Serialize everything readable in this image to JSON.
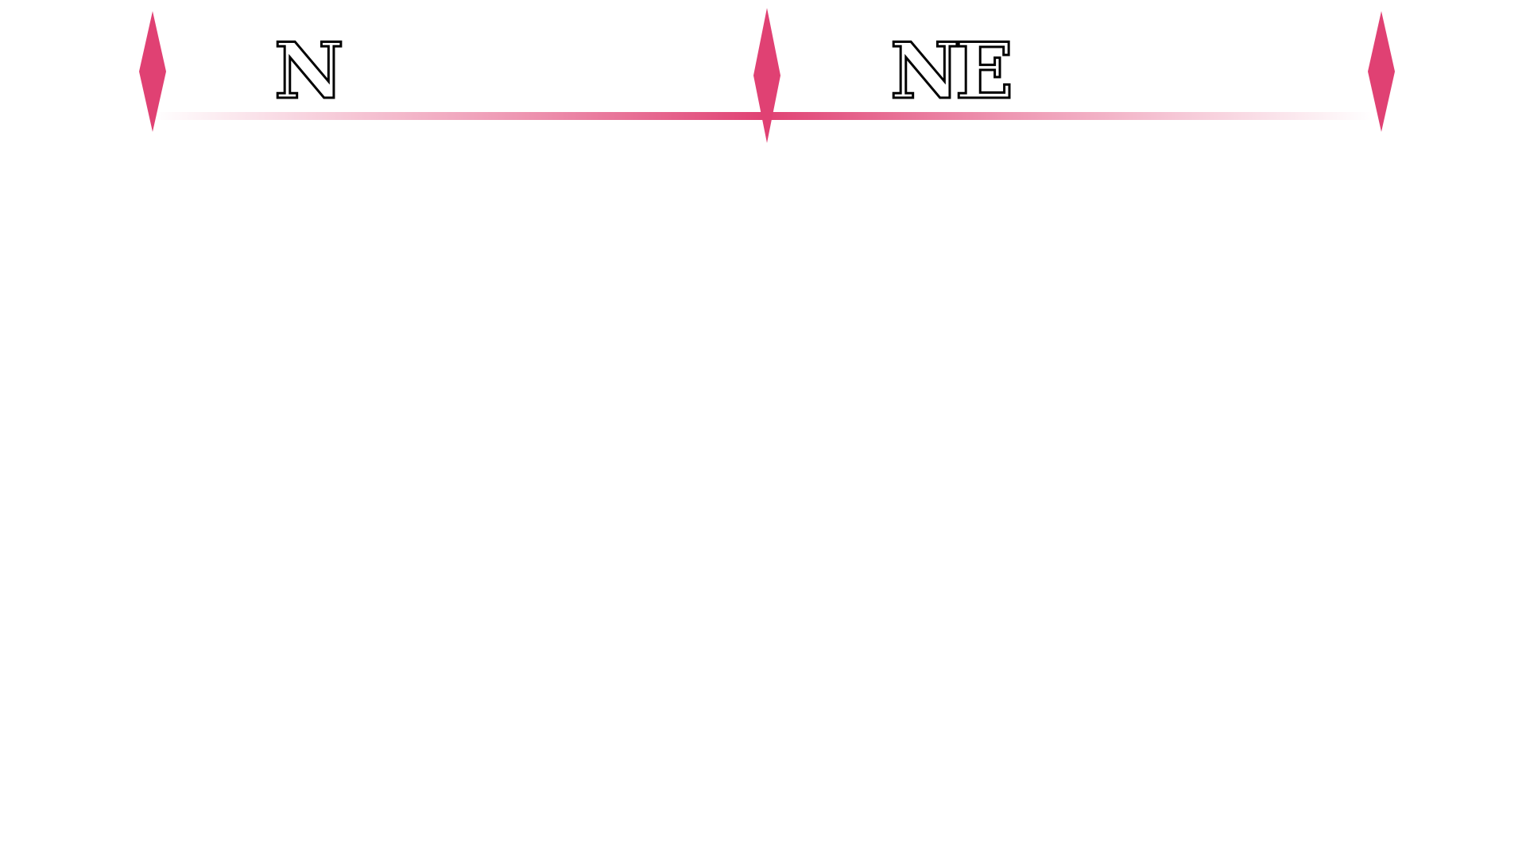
{
  "timeline": {
    "accent_color": "#e04173",
    "left_label": "N",
    "right_label": "NE",
    "markers": [
      "diamond-marker",
      "diamond-marker",
      "diamond-marker"
    ]
  }
}
